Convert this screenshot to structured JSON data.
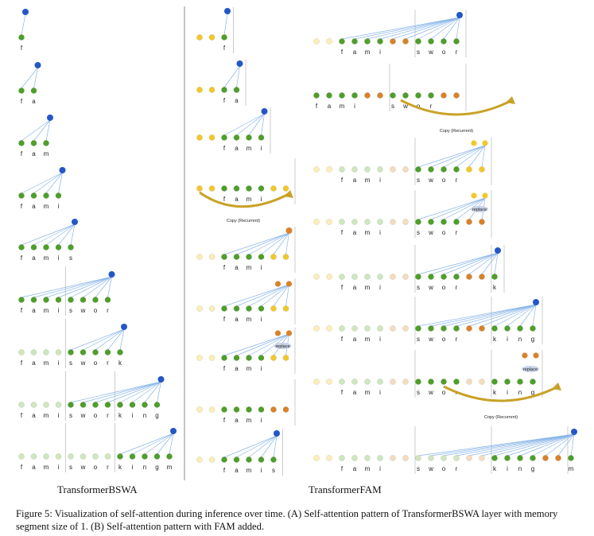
{
  "panels": {
    "a_title": "TransformerBSWA",
    "b_title": "TransformerFAM"
  },
  "caption": "Figure 5: Visualization of self-attention during inference over time. (A) Self-attention pattern of TransformerBSWA layer with memory segment size of 1. (B) Self-attention pattern with FAM added.",
  "annotations": {
    "copy_label": "Copy (Recurrent)",
    "replace_label": "replace"
  },
  "colors": {
    "green": "#4e9f2a",
    "green_faded": "#cfe6c0",
    "blue": "#2457c6",
    "yellow": "#f1c82c",
    "yellow_faded": "#fbeeb6",
    "orange": "#d9822b",
    "orange_faded": "#f4dcc0",
    "line": "#8ab6e8",
    "arrow": "#c9a227",
    "divider": "#888888"
  },
  "panel_a": {
    "rows": [
      {
        "tokens": [
          "f"
        ],
        "separators": []
      },
      {
        "tokens": [
          "f",
          "a"
        ],
        "separators": []
      },
      {
        "tokens": [
          "f",
          "a",
          "m"
        ],
        "separators": []
      },
      {
        "tokens": [
          "f",
          "a",
          "m",
          "i"
        ],
        "separators": []
      },
      {
        "tokens": [
          "f",
          "a",
          "m",
          "i",
          "s"
        ],
        "separators": []
      },
      {
        "tokens": [
          "f",
          "a",
          "m",
          "i",
          "s",
          "w",
          "o",
          "r"
        ],
        "separators": [
          4
        ]
      },
      {
        "tokens": [
          "f",
          "a",
          "m",
          "i",
          "s",
          "w",
          "o",
          "r",
          "k"
        ],
        "separators": [
          4
        ]
      },
      {
        "tokens": [
          "f",
          "a",
          "m",
          "i",
          "s",
          "w",
          "o",
          "r",
          "k",
          "i",
          "n",
          "g"
        ],
        "separators": [
          4,
          8
        ]
      },
      {
        "tokens": [
          "f",
          "a",
          "m",
          "i",
          "s",
          "w",
          "o",
          "r",
          "k",
          "i",
          "n",
          "g",
          "m"
        ],
        "separators": [
          4,
          8
        ]
      }
    ]
  },
  "panel_b": {
    "left": [
      {
        "fam": [
          "y",
          "y"
        ],
        "tokens": [
          "f"
        ],
        "faded_tokens": 0,
        "query_color": "blue"
      },
      {
        "fam": [
          "y",
          "y"
        ],
        "tokens": [
          "f",
          "a"
        ],
        "faded_tokens": 0,
        "query_color": "blue"
      },
      {
        "fam": [
          "y",
          "y"
        ],
        "tokens": [
          "f",
          "a",
          "m",
          "i"
        ],
        "faded_tokens": 0,
        "query_color": "blue"
      },
      {
        "fam": [
          "y",
          "y"
        ],
        "tokens": [
          "f",
          "a",
          "m",
          "i"
        ],
        "faded_tokens": 0,
        "query_color": "none",
        "tail": [
          "y",
          "y"
        ],
        "copy": true
      },
      {
        "fam": [
          "yf",
          "yf"
        ],
        "tokens": [
          "f",
          "a",
          "m",
          "i"
        ],
        "faded_tokens": 0,
        "query_color": "orange",
        "tail": [
          "y",
          "y"
        ]
      },
      {
        "fam": [
          "yf",
          "yf"
        ],
        "tokens": [
          "f",
          "a",
          "m",
          "i"
        ],
        "faded_tokens": 0,
        "query_color": "orange2",
        "tail": [
          "y",
          "y"
        ]
      },
      {
        "fam": [
          "yf",
          "yf"
        ],
        "tokens": [
          "f",
          "a",
          "m",
          "i"
        ],
        "faded_tokens": 0,
        "query_color": "orange2",
        "tail": [
          "y",
          "y"
        ],
        "replace": true
      },
      {
        "fam": [
          "yf",
          "yf"
        ],
        "tokens": [
          "f",
          "a",
          "m",
          "i"
        ],
        "faded_tokens": 0,
        "query_color": "none",
        "tail": [
          "o",
          "o"
        ]
      },
      {
        "fam": [
          "yf",
          "yf"
        ],
        "tokens": [
          "f",
          "a",
          "m",
          "i",
          "s"
        ],
        "faded_tokens": 0,
        "query_color": "blue",
        "tail": []
      }
    ],
    "right": [
      {
        "fam": [
          "yf",
          "yf"
        ],
        "tokens": [
          "f",
          "a",
          "m",
          "i"
        ],
        "tail": [
          "o",
          "o"
        ],
        "tokens2": [
          "s",
          "w",
          "o",
          "r"
        ],
        "query_color": "blue"
      },
      {
        "fam": [],
        "tokens": [
          "f",
          "a",
          "m",
          "i"
        ],
        "tail": [
          "o",
          "o"
        ],
        "tokens2": [
          "s",
          "w",
          "o",
          "r"
        ],
        "tail2": [
          "o",
          "o"
        ],
        "query_color": "none",
        "copy": true
      },
      {
        "fam": [
          "yf",
          "yf"
        ],
        "tokens": [
          "f",
          "a",
          "m",
          "i"
        ],
        "faded_tokens": 4,
        "tail": [
          "of",
          "of"
        ],
        "tokens2": [
          "s",
          "w",
          "o",
          "r"
        ],
        "tail2": [
          "y",
          "y"
        ],
        "query_color": "yellow2"
      },
      {
        "fam": [
          "yf",
          "yf"
        ],
        "tokens": [
          "f",
          "a",
          "m",
          "i"
        ],
        "faded_tokens": 4,
        "tail": [
          "of",
          "of"
        ],
        "tokens2": [
          "s",
          "w",
          "o",
          "r"
        ],
        "tail2": [
          "o",
          "o"
        ],
        "query_color": "yellow2",
        "replace": true
      },
      {
        "fam": [
          "yf",
          "yf"
        ],
        "tokens": [
          "f",
          "a",
          "m",
          "i"
        ],
        "faded_tokens": 4,
        "tail": [
          "of",
          "of"
        ],
        "tokens2": [
          "s",
          "w",
          "o",
          "r"
        ],
        "tail2": [
          "o",
          "o"
        ],
        "tokens3": [
          "k"
        ],
        "query_color": "blue"
      },
      {
        "fam": [
          "yf",
          "yf"
        ],
        "tokens": [
          "f",
          "a",
          "m",
          "i"
        ],
        "faded_tokens": 4,
        "tail": [
          "of",
          "of"
        ],
        "tokens2": [
          "s",
          "w",
          "o",
          "r"
        ],
        "tail2": [
          "o",
          "o"
        ],
        "tokens3": [
          "k",
          "i",
          "n",
          "g"
        ],
        "query_color": "blue"
      },
      {
        "fam": [
          "yf",
          "yf"
        ],
        "tokens": [
          "f",
          "a",
          "m",
          "i"
        ],
        "faded_tokens": 4,
        "tail": [
          "of",
          "of"
        ],
        "tokens2": [
          "s",
          "w",
          "o",
          "r"
        ],
        "tail2": [
          "of",
          "of"
        ],
        "tokens3": [
          "k",
          "i",
          "n",
          "g"
        ],
        "query_color": "orange2",
        "copy": true,
        "replace": true
      },
      {
        "fam": [
          "yf",
          "yf"
        ],
        "tokens": [
          "f",
          "a",
          "m",
          "i"
        ],
        "faded_tokens": 4,
        "tail": [
          "of",
          "of"
        ],
        "tokens2": [
          "s",
          "w",
          "o",
          "r"
        ],
        "faded_tokens2": 4,
        "tail2": [
          "of",
          "of"
        ],
        "tokens3": [
          "k",
          "i",
          "n",
          "g"
        ],
        "tail3": [
          "o",
          "o"
        ],
        "tokens4": [
          "m"
        ],
        "query_color": "blue"
      }
    ]
  }
}
